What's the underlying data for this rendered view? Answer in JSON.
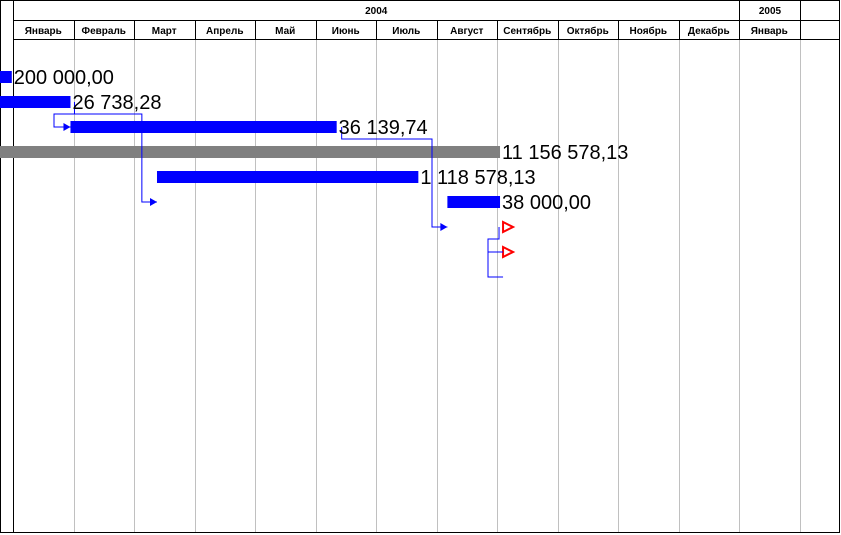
{
  "timescale": {
    "years": [
      "2004",
      "2005"
    ],
    "months_2004": [
      "Январь",
      "Февраль",
      "Март",
      "Апрель",
      "Май",
      "Июнь",
      "Июль",
      "Август",
      "Сентябрь",
      "Октябрь",
      "Ноябрь",
      "Декабрь"
    ],
    "months_2005": [
      "Январь"
    ]
  },
  "tasks": [
    {
      "id": "t1",
      "start_month": -0.3,
      "end_month": -0.02,
      "color": "#0000ff",
      "label": "200 000,00"
    },
    {
      "id": "t2",
      "start_month": -0.3,
      "end_month": 0.95,
      "color": "#0000ff",
      "label": "26 738,28"
    },
    {
      "id": "t3",
      "start_month": 0.95,
      "end_month": 5.35,
      "color": "#0000ff",
      "label": "36 139,74"
    },
    {
      "id": "t4",
      "start_month": -0.3,
      "end_month": 8.05,
      "color": "#808080",
      "label": "11 156 578,13"
    },
    {
      "id": "t5",
      "start_month": 2.38,
      "end_month": 6.7,
      "color": "#0000ff",
      "label": "1 118 578,13"
    },
    {
      "id": "t6",
      "start_month": 7.18,
      "end_month": 8.05,
      "color": "#0000ff",
      "label": "38 000,00"
    },
    {
      "id": "t7",
      "milestone": true,
      "month": 8.1,
      "color": "#ff0000"
    },
    {
      "id": "t8",
      "milestone": true,
      "month": 8.1,
      "color": "#ff0000"
    }
  ],
  "colors": {
    "link": "#0000ff",
    "grid": "#c0c0c0",
    "border": "#000000"
  }
}
